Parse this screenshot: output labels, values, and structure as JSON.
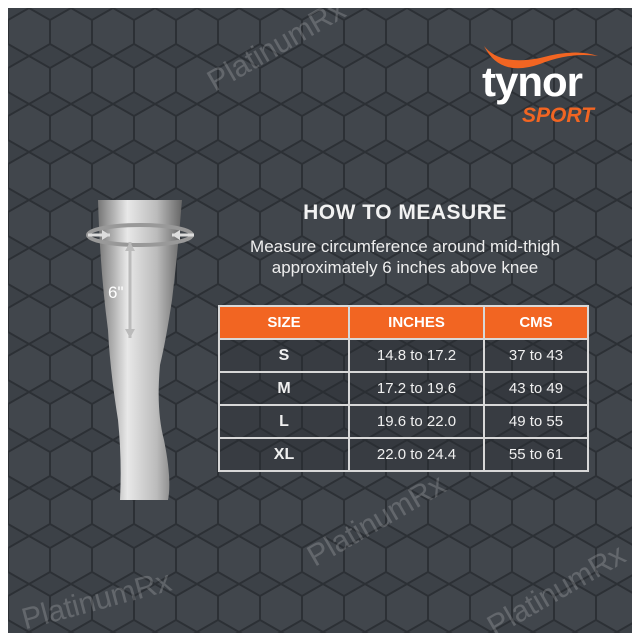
{
  "brand": {
    "name": "tynor",
    "sub": "SPORT",
    "accent": "#f26522"
  },
  "heading": "HOW TO MEASURE",
  "instructions": [
    "Measure circumference around mid-thigh",
    "approximately 6 inches above knee"
  ],
  "leg_label": "6\"",
  "table": {
    "headers": [
      "SIZE",
      "INCHES",
      "CMS"
    ],
    "rows": [
      {
        "size": "S",
        "inches": "14.8 to 17.2",
        "cms": "37 to 43"
      },
      {
        "size": "M",
        "inches": "17.2 to 19.6",
        "cms": "43 to 49"
      },
      {
        "size": "L",
        "inches": "19.6 to 22.0",
        "cms": "49 to 55"
      },
      {
        "size": "XL",
        "inches": "22.0 to 24.4",
        "cms": "55 to 61"
      }
    ]
  },
  "watermark": "PlatinumRx"
}
